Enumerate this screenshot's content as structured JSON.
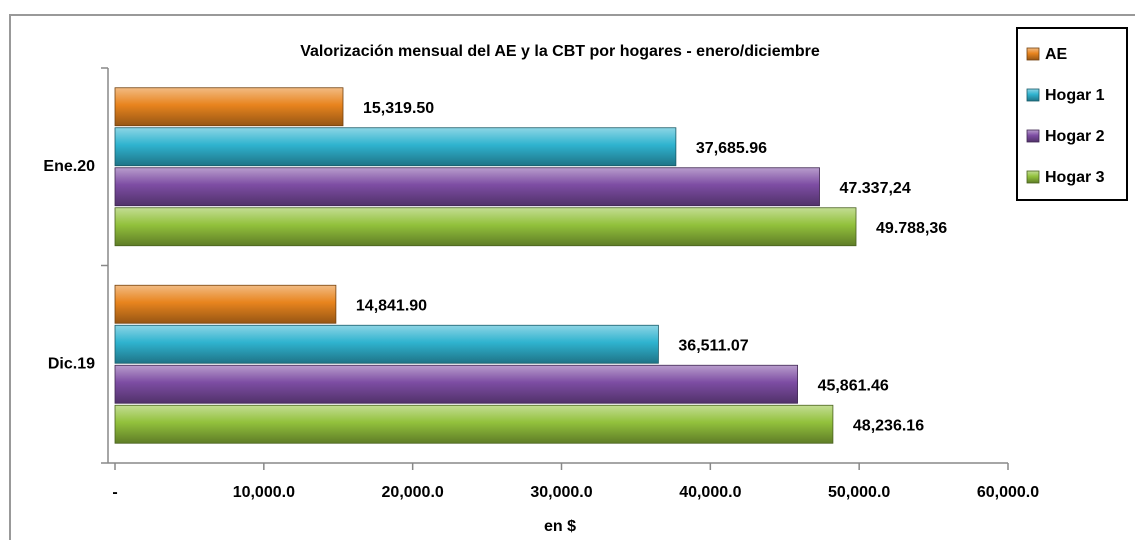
{
  "chart_data": {
    "type": "bar",
    "orientation": "horizontal",
    "title": "Valorización mensual del AE y la CBT por hogares - enero/diciembre",
    "x_label": "en $",
    "categories": [
      "Ene.20",
      "Dic.19"
    ],
    "series": [
      {
        "name": "AE",
        "color": "#e8841e",
        "values": [
          15319.5,
          14841.9
        ],
        "value_labels": [
          "15,319.50",
          "14,841.90"
        ]
      },
      {
        "name": "Hogar 1",
        "color": "#2fb3cf",
        "values": [
          37685.96,
          36511.07
        ],
        "value_labels": [
          "37,685.96",
          "36,511.07"
        ]
      },
      {
        "name": "Hogar 2",
        "color": "#7d4da3",
        "values": [
          47337.24,
          45861.46
        ],
        "value_labels": [
          "47.337,24",
          "45,861.46"
        ]
      },
      {
        "name": "Hogar 3",
        "color": "#92c13c",
        "values": [
          49788.36,
          48236.16
        ],
        "value_labels": [
          "49.788,36",
          "48,236.16"
        ]
      }
    ],
    "xlim": [
      0,
      60000
    ],
    "xticks": [
      {
        "value": 0,
        "label": "-"
      },
      {
        "value": 10000,
        "label": "10,000.0"
      },
      {
        "value": 20000,
        "label": "20,000.0"
      },
      {
        "value": 30000,
        "label": "30,000.0"
      },
      {
        "value": 40000,
        "label": "40,000.0"
      },
      {
        "value": 50000,
        "label": "50,000.0"
      },
      {
        "value": 60000,
        "label": "60,000.0"
      }
    ],
    "legend": "right"
  }
}
